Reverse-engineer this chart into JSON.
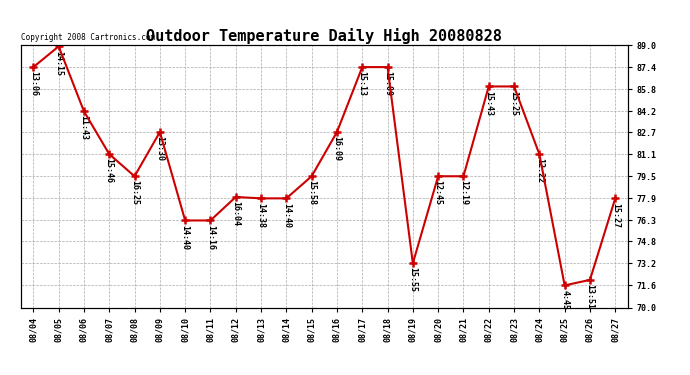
{
  "title": "Outdoor Temperature Daily High 20080828",
  "copyright_text": "Copyright 2008 Cartronics.com",
  "dates": [
    "08/04",
    "08/05",
    "08/06",
    "08/07",
    "08/08",
    "08/09",
    "08/10",
    "08/11",
    "08/12",
    "08/13",
    "08/14",
    "08/15",
    "08/16",
    "08/17",
    "08/18",
    "08/19",
    "08/20",
    "08/21",
    "08/22",
    "08/23",
    "08/24",
    "08/25",
    "08/26",
    "08/27"
  ],
  "values": [
    87.4,
    88.9,
    84.2,
    81.1,
    79.5,
    82.7,
    76.3,
    76.3,
    78.0,
    77.9,
    77.9,
    79.5,
    82.7,
    87.4,
    87.4,
    73.2,
    79.5,
    79.5,
    86.0,
    86.0,
    81.1,
    71.6,
    72.0,
    77.9
  ],
  "time_labels": [
    "13:06",
    "14:15",
    "11:43",
    "15:46",
    "16:25",
    "13:30",
    "14:40",
    "14:16",
    "16:04",
    "14:38",
    "14:40",
    "15:58",
    "16:09",
    "15:13",
    "15:09",
    "15:55",
    "12:45",
    "12:19",
    "15:43",
    "15:25",
    "12:22",
    "4:45",
    "13:51",
    "15:27"
  ],
  "ylim_min": 70.0,
  "ylim_max": 89.0,
  "ytick_values": [
    70.0,
    71.6,
    73.2,
    74.8,
    76.3,
    77.9,
    79.5,
    81.1,
    82.7,
    84.2,
    85.8,
    87.4,
    89.0
  ],
  "ytick_labels": [
    "70.0",
    "71.6",
    "73.2",
    "74.8",
    "76.3",
    "77.9",
    "79.5",
    "81.1",
    "82.7",
    "84.2",
    "85.8",
    "87.4",
    "89.0"
  ],
  "line_color": "#cc0000",
  "bg_color": "#ffffff",
  "grid_color": "#aaaaaa",
  "title_fontsize": 11,
  "annot_fontsize": 6,
  "tick_fontsize": 6,
  "copyright_fontsize": 5.5
}
